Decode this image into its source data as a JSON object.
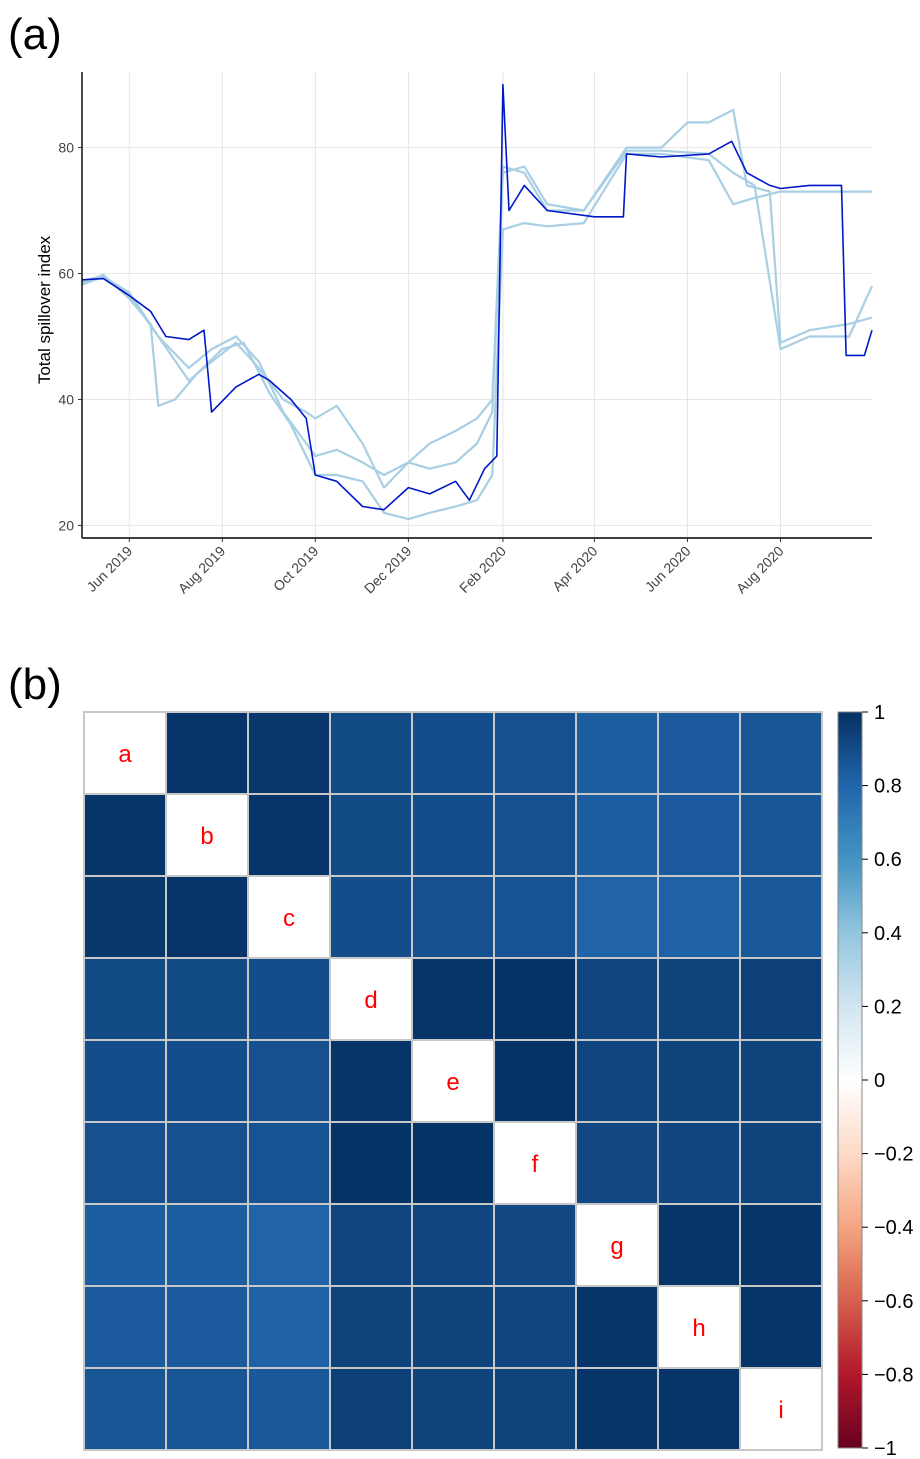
{
  "panels": {
    "a": "(a)",
    "b": "(b)"
  },
  "colors": {
    "main": "#0018c8",
    "light": "#a8cfe3",
    "grid": "#e6e6e6"
  },
  "chart_data": [
    {
      "type": "line",
      "ylabel": "Total spillover index",
      "xlabel": "",
      "x_start": "2019-05-01",
      "x_end": "2020-09-30",
      "ylim": [
        18,
        92
      ],
      "yticks": [
        20,
        40,
        60,
        80
      ],
      "xticks": [
        {
          "date": "2019-06-01",
          "label": "Jun 2019"
        },
        {
          "date": "2019-08-01",
          "label": "Aug 2019"
        },
        {
          "date": "2019-10-01",
          "label": "Oct 2019"
        },
        {
          "date": "2019-12-01",
          "label": "Dec 2019"
        },
        {
          "date": "2020-02-01",
          "label": "Feb 2020"
        },
        {
          "date": "2020-04-01",
          "label": "Apr 2020"
        },
        {
          "date": "2020-06-01",
          "label": "Jun 2020"
        },
        {
          "date": "2020-08-01",
          "label": "Aug 2020"
        }
      ],
      "grid": true,
      "series": [
        {
          "style": "light",
          "points": [
            [
              "2019-05-01",
              58.5
            ],
            [
              "2019-05-15",
              59.8
            ],
            [
              "2019-06-01",
              56
            ],
            [
              "2019-06-15",
              52
            ],
            [
              "2019-06-20",
              39
            ],
            [
              "2019-07-01",
              40
            ],
            [
              "2019-07-15",
              44
            ],
            [
              "2019-08-01",
              48
            ],
            [
              "2019-08-15",
              49
            ],
            [
              "2019-09-01",
              41
            ],
            [
              "2019-09-15",
              36
            ],
            [
              "2019-10-01",
              28
            ],
            [
              "2019-10-15",
              28
            ],
            [
              "2019-11-01",
              27
            ],
            [
              "2019-11-15",
              22
            ],
            [
              "2019-12-01",
              21
            ],
            [
              "2019-12-15",
              22
            ],
            [
              "2020-01-01",
              23
            ],
            [
              "2020-01-15",
              24
            ],
            [
              "2020-01-25",
              28
            ],
            [
              "2020-02-01",
              67
            ],
            [
              "2020-02-15",
              68
            ],
            [
              "2020-03-01",
              67.5
            ],
            [
              "2020-03-25",
              68
            ],
            [
              "2020-04-22",
              79
            ],
            [
              "2020-05-15",
              79
            ],
            [
              "2020-06-15",
              78
            ],
            [
              "2020-07-01",
              71
            ],
            [
              "2020-07-15",
              72
            ],
            [
              "2020-08-01",
              73
            ],
            [
              "2020-08-15",
              73
            ],
            [
              "2020-09-01",
              73
            ],
            [
              "2020-09-30",
              73
            ]
          ]
        },
        {
          "style": "light",
          "points": [
            [
              "2019-05-01",
              58.2
            ],
            [
              "2019-05-15",
              59.5
            ],
            [
              "2019-06-01",
              57
            ],
            [
              "2019-06-20",
              50
            ],
            [
              "2019-07-10",
              45
            ],
            [
              "2019-07-25",
              48
            ],
            [
              "2019-08-10",
              50
            ],
            [
              "2019-08-25",
              46
            ],
            [
              "2019-09-10",
              38
            ],
            [
              "2019-09-25",
              33
            ],
            [
              "2019-10-01",
              31
            ],
            [
              "2019-10-15",
              32
            ],
            [
              "2019-11-01",
              30
            ],
            [
              "2019-11-15",
              28
            ],
            [
              "2019-12-01",
              30
            ],
            [
              "2019-12-15",
              29
            ],
            [
              "2020-01-01",
              30
            ],
            [
              "2020-01-15",
              33
            ],
            [
              "2020-01-25",
              38
            ],
            [
              "2020-02-01",
              76
            ],
            [
              "2020-02-15",
              77
            ],
            [
              "2020-03-01",
              71
            ],
            [
              "2020-03-25",
              70
            ],
            [
              "2020-04-22",
              80
            ],
            [
              "2020-05-15",
              80
            ],
            [
              "2020-06-01",
              84
            ],
            [
              "2020-06-15",
              84
            ],
            [
              "2020-07-01",
              86
            ],
            [
              "2020-07-10",
              74
            ],
            [
              "2020-07-25",
              73
            ],
            [
              "2020-08-01",
              49
            ],
            [
              "2020-08-20",
              51
            ],
            [
              "2020-09-15",
              52
            ],
            [
              "2020-09-30",
              53
            ]
          ]
        },
        {
          "style": "light",
          "points": [
            [
              "2019-05-01",
              58.8
            ],
            [
              "2019-05-15",
              59.6
            ],
            [
              "2019-06-01",
              56.5
            ],
            [
              "2019-06-20",
              50
            ],
            [
              "2019-07-10",
              43
            ],
            [
              "2019-07-25",
              46
            ],
            [
              "2019-08-10",
              49
            ],
            [
              "2019-08-25",
              45
            ],
            [
              "2019-09-10",
              40
            ],
            [
              "2019-09-25",
              38
            ],
            [
              "2019-10-01",
              37
            ],
            [
              "2019-10-15",
              39
            ],
            [
              "2019-11-01",
              33
            ],
            [
              "2019-11-15",
              26
            ],
            [
              "2019-12-01",
              30
            ],
            [
              "2019-12-15",
              33
            ],
            [
              "2020-01-01",
              35
            ],
            [
              "2020-01-15",
              37
            ],
            [
              "2020-01-25",
              40
            ],
            [
              "2020-02-01",
              77
            ],
            [
              "2020-02-15",
              76
            ],
            [
              "2020-03-01",
              70
            ],
            [
              "2020-03-25",
              70
            ],
            [
              "2020-04-22",
              79.5
            ],
            [
              "2020-05-15",
              79.5
            ],
            [
              "2020-06-15",
              79
            ],
            [
              "2020-07-01",
              76
            ],
            [
              "2020-07-15",
              74
            ],
            [
              "2020-08-01",
              48
            ],
            [
              "2020-08-20",
              50
            ],
            [
              "2020-09-15",
              50
            ],
            [
              "2020-09-30",
              58
            ]
          ]
        },
        {
          "style": "main",
          "points": [
            [
              "2019-05-01",
              59
            ],
            [
              "2019-05-15",
              59.2
            ],
            [
              "2019-06-01",
              56.5
            ],
            [
              "2019-06-15",
              54
            ],
            [
              "2019-06-25",
              50
            ],
            [
              "2019-07-10",
              49.5
            ],
            [
              "2019-07-20",
              51
            ],
            [
              "2019-07-25",
              38
            ],
            [
              "2019-08-10",
              42
            ],
            [
              "2019-08-25",
              44
            ],
            [
              "2019-09-01",
              43
            ],
            [
              "2019-09-15",
              40
            ],
            [
              "2019-09-25",
              37
            ],
            [
              "2019-10-01",
              28
            ],
            [
              "2019-10-15",
              27
            ],
            [
              "2019-11-01",
              23
            ],
            [
              "2019-11-15",
              22.5
            ],
            [
              "2019-12-01",
              26
            ],
            [
              "2019-12-15",
              25
            ],
            [
              "2020-01-01",
              27
            ],
            [
              "2020-01-10",
              24
            ],
            [
              "2020-01-20",
              29
            ],
            [
              "2020-01-28",
              31
            ],
            [
              "2020-02-01",
              90
            ],
            [
              "2020-02-05",
              70
            ],
            [
              "2020-02-15",
              74
            ],
            [
              "2020-03-01",
              70
            ],
            [
              "2020-04-01",
              69
            ],
            [
              "2020-04-20",
              69
            ],
            [
              "2020-04-22",
              79
            ],
            [
              "2020-05-15",
              78.5
            ],
            [
              "2020-06-15",
              79
            ],
            [
              "2020-06-30",
              81
            ],
            [
              "2020-07-10",
              76
            ],
            [
              "2020-07-25",
              74
            ],
            [
              "2020-08-01",
              73.5
            ],
            [
              "2020-08-20",
              74
            ],
            [
              "2020-09-10",
              74
            ],
            [
              "2020-09-13",
              47
            ],
            [
              "2020-09-25",
              47
            ],
            [
              "2020-09-30",
              51
            ]
          ]
        }
      ]
    },
    {
      "type": "heatmap",
      "labels": [
        "a",
        "b",
        "c",
        "d",
        "e",
        "f",
        "g",
        "h",
        "i"
      ],
      "matrix": [
        [
          1,
          0.98,
          0.97,
          0.9,
          0.89,
          0.88,
          0.83,
          0.84,
          0.86
        ],
        [
          0.98,
          1,
          0.98,
          0.9,
          0.89,
          0.88,
          0.83,
          0.84,
          0.86
        ],
        [
          0.97,
          0.98,
          1,
          0.89,
          0.88,
          0.87,
          0.81,
          0.82,
          0.85
        ],
        [
          0.9,
          0.9,
          0.89,
          1,
          0.98,
          0.99,
          0.92,
          0.93,
          0.94
        ],
        [
          0.89,
          0.89,
          0.88,
          0.98,
          1,
          0.99,
          0.92,
          0.93,
          0.93
        ],
        [
          0.88,
          0.88,
          0.87,
          0.99,
          0.99,
          1,
          0.91,
          0.92,
          0.93
        ],
        [
          0.83,
          0.83,
          0.81,
          0.92,
          0.92,
          0.91,
          1,
          0.98,
          0.98
        ],
        [
          0.84,
          0.84,
          0.82,
          0.93,
          0.93,
          0.92,
          0.98,
          1,
          0.98
        ],
        [
          0.86,
          0.86,
          0.85,
          0.94,
          0.93,
          0.93,
          0.98,
          0.98,
          1
        ]
      ],
      "diagonal_color": "#ffffff",
      "colorbar": {
        "range": [
          -1,
          1
        ],
        "ticks": [
          "1",
          "0.8",
          "0.6",
          "0.4",
          "0.2",
          "0",
          "−0.2",
          "−0.4",
          "−0.6",
          "−0.8",
          "−1"
        ],
        "tick_values": [
          1,
          0.8,
          0.6,
          0.4,
          0.2,
          0,
          -0.2,
          -0.4,
          -0.6,
          -0.8,
          -1
        ]
      }
    }
  ]
}
